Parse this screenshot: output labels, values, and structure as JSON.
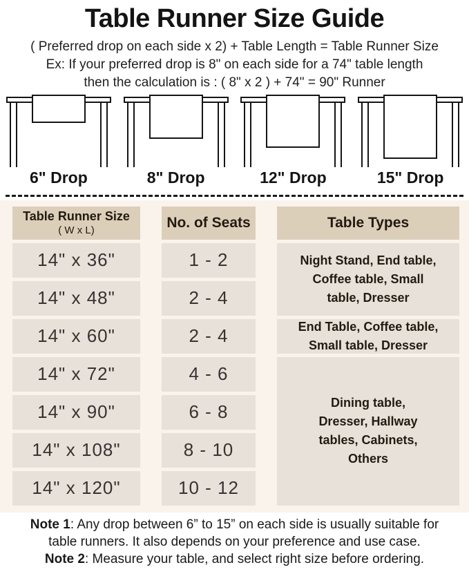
{
  "title": "Table Runner Size Guide",
  "formula_line": "( Preferred drop on each side x 2) + Table Length = Table Runner Size",
  "example_line1": "Ex: If your preferred drop is 8\" on each side for a 74\" table length",
  "example_line2": "then the calculation is : ( 8\" x 2 ) + 74\" = 90\" Runner",
  "figures": [
    {
      "label": "6\" Drop"
    },
    {
      "label": "8\" Drop"
    },
    {
      "label": "12\" Drop"
    },
    {
      "label": "15\" Drop"
    }
  ],
  "size_table": {
    "header": {
      "size_title": "Table Runner Size",
      "size_subtitle": "( W x L)",
      "seats": "No. of Seats",
      "types": "Table Types"
    },
    "rows": [
      {
        "size": "14\" x 36\"",
        "seats": "1 - 2"
      },
      {
        "size": "14\" x 48\"",
        "seats": "2 - 4"
      },
      {
        "size": "14\" x 60\"",
        "seats": "2 - 4"
      },
      {
        "size": "14\" x 72\"",
        "seats": "4 - 6"
      },
      {
        "size": "14\" x 90\"",
        "seats": "6 - 8"
      },
      {
        "size": "14\" x 108\"",
        "seats": "8 - 10"
      },
      {
        "size": "14\" x 120\"",
        "seats": "10 - 12"
      }
    ],
    "table_types": [
      {
        "text": "Night Stand, End table,\nCoffee table, Small\ntable, Dresser",
        "row_span": 2
      },
      {
        "text": "End Table, Coffee table,\nSmall table, Dresser",
        "row_span": 1
      },
      {
        "text": "Dining table,\nDresser, Hallway\ntables, Cabinets,\nOthers",
        "row_span": 4
      }
    ]
  },
  "notes": [
    {
      "label": "Note 1",
      "text": ": Any drop between 6” to 15” on each side is usually suitable for\ntable runners. It also depends on your preference and use case."
    },
    {
      "label": "Note 2",
      "text": ": Measure your table, and select right size before ordering."
    }
  ],
  "colors": {
    "section_bg": "#faf3ec",
    "header_cell_bg": "#dccfba",
    "data_cell_bg": "#e7e1da",
    "line_color": "#1a1a1a"
  }
}
